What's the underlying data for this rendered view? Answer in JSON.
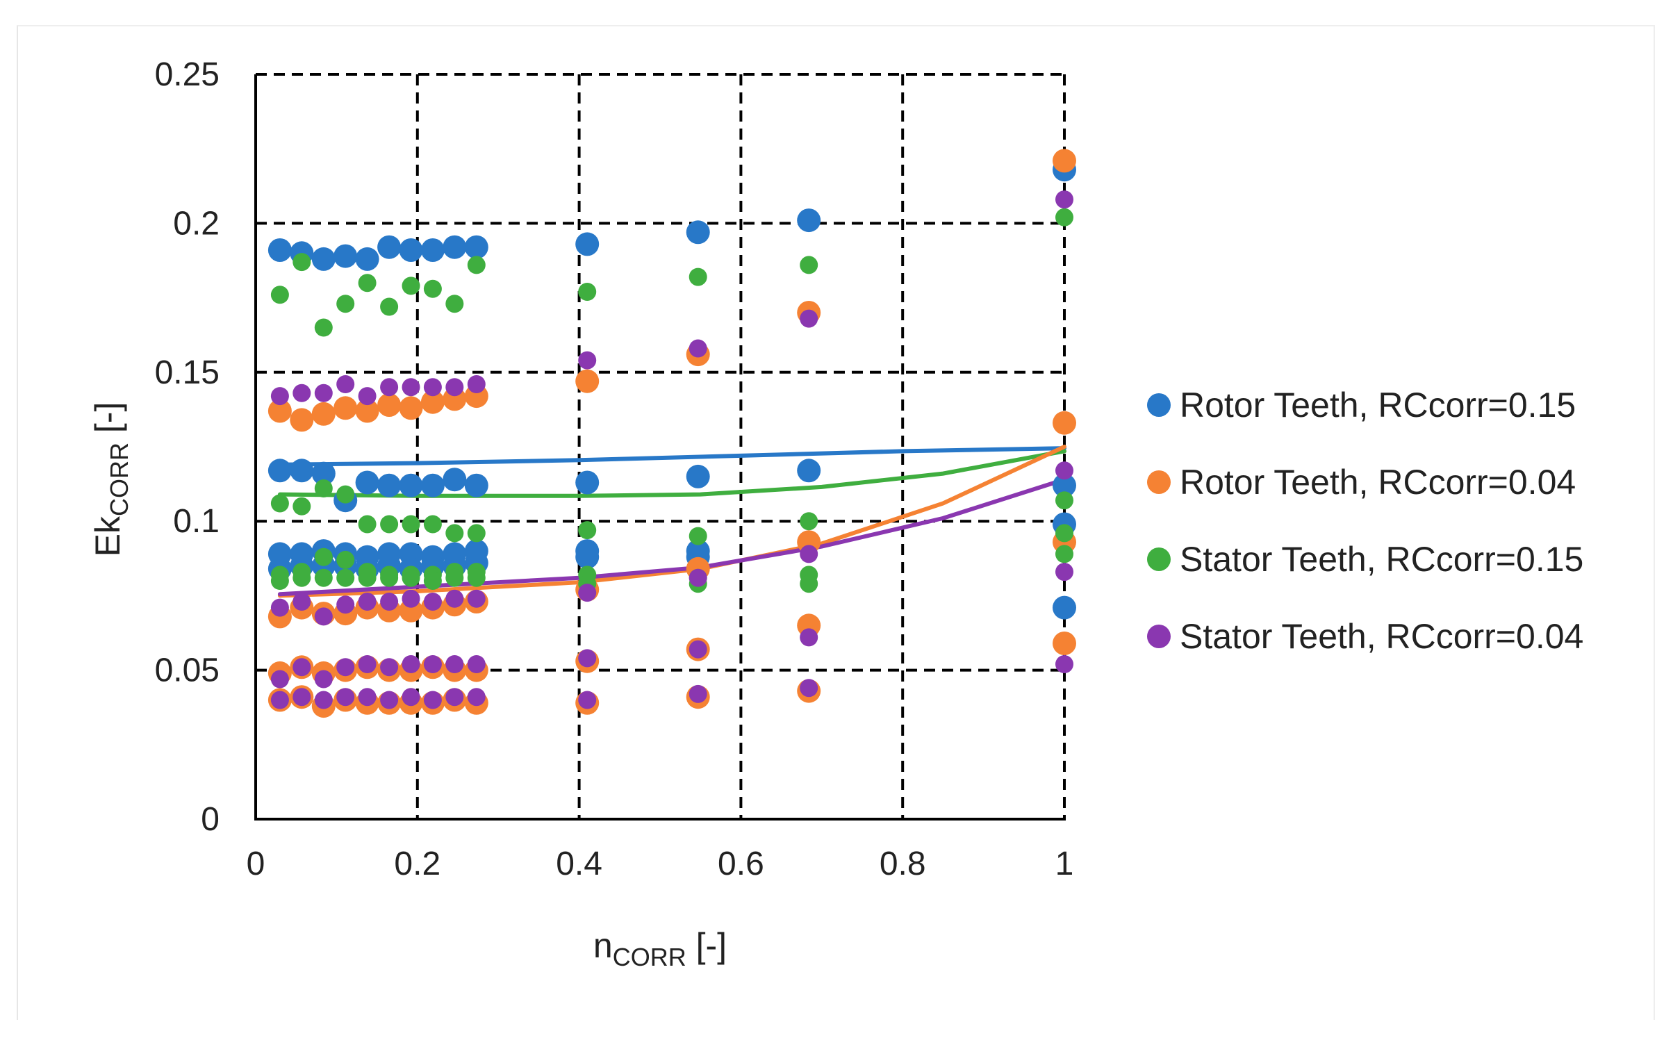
{
  "chart_data": {
    "type": "scatter",
    "title": "",
    "xlabel": "n",
    "xlabel_sub": "CORR",
    "xlabel_suffix": " [-]",
    "ylabel": "Ek",
    "ylabel_sub": "CORR",
    "ylabel_suffix": " [-]",
    "xlim": [
      0,
      1
    ],
    "ylim": [
      0,
      0.25
    ],
    "xticks": [
      0,
      0.2,
      0.4,
      0.6,
      0.8,
      1
    ],
    "xtick_labels": [
      "0",
      "0.2",
      "0.4",
      "0.6",
      "0.8",
      "1"
    ],
    "yticks": [
      0,
      0.05,
      0.1,
      0.15,
      0.2,
      0.25
    ],
    "ytick_labels": [
      "0",
      "0.05",
      "0.1",
      "0.15",
      "0.2",
      "0.25"
    ],
    "grid": "dashed",
    "legend_position": "right",
    "series": [
      {
        "name": "Rotor Teeth, RCcorr=0.15",
        "color": "#2878C8",
        "marker_size": "large",
        "points": [
          [
            0.03,
            0.191
          ],
          [
            0.057,
            0.19
          ],
          [
            0.084,
            0.188
          ],
          [
            0.111,
            0.189
          ],
          [
            0.138,
            0.188
          ],
          [
            0.165,
            0.192
          ],
          [
            0.192,
            0.191
          ],
          [
            0.219,
            0.191
          ],
          [
            0.246,
            0.192
          ],
          [
            0.273,
            0.192
          ],
          [
            0.03,
            0.117
          ],
          [
            0.057,
            0.117
          ],
          [
            0.084,
            0.116
          ],
          [
            0.111,
            0.107
          ],
          [
            0.138,
            0.113
          ],
          [
            0.165,
            0.112
          ],
          [
            0.192,
            0.112
          ],
          [
            0.219,
            0.112
          ],
          [
            0.246,
            0.114
          ],
          [
            0.273,
            0.112
          ],
          [
            0.03,
            0.089
          ],
          [
            0.057,
            0.089
          ],
          [
            0.084,
            0.09
          ],
          [
            0.111,
            0.089
          ],
          [
            0.138,
            0.088
          ],
          [
            0.165,
            0.089
          ],
          [
            0.192,
            0.089
          ],
          [
            0.219,
            0.088
          ],
          [
            0.246,
            0.089
          ],
          [
            0.273,
            0.09
          ],
          [
            0.03,
            0.084
          ],
          [
            0.057,
            0.085
          ],
          [
            0.084,
            0.085
          ],
          [
            0.111,
            0.085
          ],
          [
            0.138,
            0.084
          ],
          [
            0.165,
            0.085
          ],
          [
            0.192,
            0.084
          ],
          [
            0.219,
            0.085
          ],
          [
            0.246,
            0.085
          ],
          [
            0.273,
            0.086
          ],
          [
            0.41,
            0.193
          ],
          [
            0.41,
            0.113
          ],
          [
            0.41,
            0.09
          ],
          [
            0.41,
            0.088
          ],
          [
            0.547,
            0.197
          ],
          [
            0.547,
            0.115
          ],
          [
            0.547,
            0.09
          ],
          [
            0.547,
            0.088
          ],
          [
            0.684,
            0.201
          ],
          [
            0.684,
            0.117
          ],
          [
            1.0,
            0.218
          ],
          [
            1.0,
            0.112
          ],
          [
            1.0,
            0.099
          ],
          [
            1.0,
            0.071
          ]
        ]
      },
      {
        "name": "Rotor Teeth, RCcorr=0.04",
        "color": "#F58233",
        "marker_size": "large",
        "points": [
          [
            0.03,
            0.137
          ],
          [
            0.057,
            0.134
          ],
          [
            0.084,
            0.136
          ],
          [
            0.111,
            0.138
          ],
          [
            0.138,
            0.137
          ],
          [
            0.165,
            0.139
          ],
          [
            0.192,
            0.138
          ],
          [
            0.219,
            0.14
          ],
          [
            0.246,
            0.141
          ],
          [
            0.273,
            0.142
          ],
          [
            0.03,
            0.068
          ],
          [
            0.057,
            0.071
          ],
          [
            0.084,
            0.069
          ],
          [
            0.111,
            0.069
          ],
          [
            0.138,
            0.071
          ],
          [
            0.165,
            0.07
          ],
          [
            0.192,
            0.07
          ],
          [
            0.219,
            0.071
          ],
          [
            0.246,
            0.072
          ],
          [
            0.273,
            0.073
          ],
          [
            0.03,
            0.049
          ],
          [
            0.057,
            0.051
          ],
          [
            0.084,
            0.049
          ],
          [
            0.111,
            0.05
          ],
          [
            0.138,
            0.051
          ],
          [
            0.165,
            0.05
          ],
          [
            0.192,
            0.05
          ],
          [
            0.219,
            0.051
          ],
          [
            0.246,
            0.05
          ],
          [
            0.273,
            0.05
          ],
          [
            0.03,
            0.04
          ],
          [
            0.057,
            0.041
          ],
          [
            0.084,
            0.038
          ],
          [
            0.111,
            0.04
          ],
          [
            0.138,
            0.039
          ],
          [
            0.165,
            0.039
          ],
          [
            0.192,
            0.039
          ],
          [
            0.219,
            0.039
          ],
          [
            0.246,
            0.04
          ],
          [
            0.273,
            0.039
          ],
          [
            0.41,
            0.147
          ],
          [
            0.41,
            0.077
          ],
          [
            0.41,
            0.053
          ],
          [
            0.41,
            0.039
          ],
          [
            0.547,
            0.156
          ],
          [
            0.547,
            0.084
          ],
          [
            0.547,
            0.057
          ],
          [
            0.547,
            0.041
          ],
          [
            0.684,
            0.17
          ],
          [
            0.684,
            0.093
          ],
          [
            0.684,
            0.065
          ],
          [
            0.684,
            0.043
          ],
          [
            1.0,
            0.221
          ],
          [
            1.0,
            0.133
          ],
          [
            1.0,
            0.093
          ],
          [
            1.0,
            0.059
          ]
        ]
      },
      {
        "name": "Stator Teeth, RCcorr=0.15",
        "color": "#3FAE3F",
        "marker_size": "small",
        "points": [
          [
            0.03,
            0.176
          ],
          [
            0.057,
            0.187
          ],
          [
            0.084,
            0.165
          ],
          [
            0.111,
            0.173
          ],
          [
            0.138,
            0.18
          ],
          [
            0.165,
            0.172
          ],
          [
            0.192,
            0.179
          ],
          [
            0.219,
            0.178
          ],
          [
            0.246,
            0.173
          ],
          [
            0.273,
            0.186
          ],
          [
            0.03,
            0.106
          ],
          [
            0.057,
            0.105
          ],
          [
            0.084,
            0.111
          ],
          [
            0.111,
            0.109
          ],
          [
            0.138,
            0.099
          ],
          [
            0.165,
            0.099
          ],
          [
            0.192,
            0.099
          ],
          [
            0.219,
            0.099
          ],
          [
            0.246,
            0.096
          ],
          [
            0.273,
            0.096
          ],
          [
            0.03,
            0.082
          ],
          [
            0.057,
            0.083
          ],
          [
            0.084,
            0.088
          ],
          [
            0.111,
            0.087
          ],
          [
            0.138,
            0.083
          ],
          [
            0.165,
            0.082
          ],
          [
            0.192,
            0.082
          ],
          [
            0.219,
            0.082
          ],
          [
            0.246,
            0.083
          ],
          [
            0.273,
            0.083
          ],
          [
            0.03,
            0.08
          ],
          [
            0.057,
            0.081
          ],
          [
            0.084,
            0.081
          ],
          [
            0.111,
            0.081
          ],
          [
            0.138,
            0.081
          ],
          [
            0.165,
            0.081
          ],
          [
            0.192,
            0.081
          ],
          [
            0.219,
            0.08
          ],
          [
            0.246,
            0.081
          ],
          [
            0.273,
            0.081
          ],
          [
            0.41,
            0.177
          ],
          [
            0.41,
            0.097
          ],
          [
            0.41,
            0.082
          ],
          [
            0.41,
            0.079
          ],
          [
            0.547,
            0.182
          ],
          [
            0.547,
            0.095
          ],
          [
            0.547,
            0.081
          ],
          [
            0.547,
            0.079
          ],
          [
            0.684,
            0.186
          ],
          [
            0.684,
            0.1
          ],
          [
            0.684,
            0.082
          ],
          [
            0.684,
            0.079
          ],
          [
            1.0,
            0.202
          ],
          [
            1.0,
            0.107
          ],
          [
            1.0,
            0.096
          ],
          [
            1.0,
            0.089
          ]
        ]
      },
      {
        "name": "Stator Teeth, RCcorr=0.04",
        "color": "#8A37B0",
        "marker_size": "small",
        "points": [
          [
            0.03,
            0.142
          ],
          [
            0.057,
            0.143
          ],
          [
            0.084,
            0.143
          ],
          [
            0.111,
            0.146
          ],
          [
            0.138,
            0.142
          ],
          [
            0.165,
            0.145
          ],
          [
            0.192,
            0.145
          ],
          [
            0.219,
            0.145
          ],
          [
            0.246,
            0.145
          ],
          [
            0.273,
            0.146
          ],
          [
            0.03,
            0.071
          ],
          [
            0.057,
            0.073
          ],
          [
            0.084,
            0.068
          ],
          [
            0.111,
            0.072
          ],
          [
            0.138,
            0.073
          ],
          [
            0.165,
            0.073
          ],
          [
            0.192,
            0.074
          ],
          [
            0.219,
            0.073
          ],
          [
            0.246,
            0.074
          ],
          [
            0.273,
            0.074
          ],
          [
            0.03,
            0.047
          ],
          [
            0.057,
            0.051
          ],
          [
            0.084,
            0.047
          ],
          [
            0.111,
            0.051
          ],
          [
            0.138,
            0.052
          ],
          [
            0.165,
            0.051
          ],
          [
            0.192,
            0.052
          ],
          [
            0.219,
            0.052
          ],
          [
            0.246,
            0.052
          ],
          [
            0.273,
            0.052
          ],
          [
            0.03,
            0.04
          ],
          [
            0.057,
            0.041
          ],
          [
            0.084,
            0.04
          ],
          [
            0.111,
            0.041
          ],
          [
            0.138,
            0.041
          ],
          [
            0.165,
            0.04
          ],
          [
            0.192,
            0.041
          ],
          [
            0.219,
            0.04
          ],
          [
            0.246,
            0.041
          ],
          [
            0.273,
            0.041
          ],
          [
            0.41,
            0.154
          ],
          [
            0.41,
            0.076
          ],
          [
            0.41,
            0.054
          ],
          [
            0.41,
            0.04
          ],
          [
            0.547,
            0.158
          ],
          [
            0.547,
            0.081
          ],
          [
            0.547,
            0.057
          ],
          [
            0.547,
            0.042
          ],
          [
            0.684,
            0.168
          ],
          [
            0.684,
            0.089
          ],
          [
            0.684,
            0.061
          ],
          [
            0.684,
            0.044
          ],
          [
            1.0,
            0.208
          ],
          [
            1.0,
            0.117
          ],
          [
            1.0,
            0.083
          ],
          [
            1.0,
            0.052
          ]
        ]
      }
    ],
    "trendlines": [
      {
        "series": "Rotor Teeth, RCcorr=0.15",
        "color": "#2878C8",
        "points": [
          [
            0.03,
            0.119
          ],
          [
            0.2,
            0.1195
          ],
          [
            0.4,
            0.1205
          ],
          [
            0.6,
            0.122
          ],
          [
            0.8,
            0.1235
          ],
          [
            1.0,
            0.1245
          ]
        ]
      },
      {
        "series": "Stator Teeth, RCcorr=0.15",
        "color": "#3FAE3F",
        "points": [
          [
            0.03,
            0.109
          ],
          [
            0.2,
            0.1085
          ],
          [
            0.4,
            0.1085
          ],
          [
            0.55,
            0.109
          ],
          [
            0.7,
            0.1115
          ],
          [
            0.85,
            0.116
          ],
          [
            1.0,
            0.1235
          ]
        ]
      },
      {
        "series": "Rotor Teeth, RCcorr=0.04",
        "color": "#F58233",
        "points": [
          [
            0.03,
            0.075
          ],
          [
            0.2,
            0.0765
          ],
          [
            0.4,
            0.0795
          ],
          [
            0.55,
            0.084
          ],
          [
            0.7,
            0.0925
          ],
          [
            0.85,
            0.106
          ],
          [
            1.0,
            0.125
          ]
        ]
      },
      {
        "series": "Stator Teeth, RCcorr=0.04",
        "color": "#8A37B0",
        "points": [
          [
            0.03,
            0.0755
          ],
          [
            0.2,
            0.078
          ],
          [
            0.4,
            0.081
          ],
          [
            0.55,
            0.0845
          ],
          [
            0.7,
            0.0915
          ],
          [
            0.85,
            0.101
          ],
          [
            1.0,
            0.114
          ]
        ]
      }
    ]
  }
}
